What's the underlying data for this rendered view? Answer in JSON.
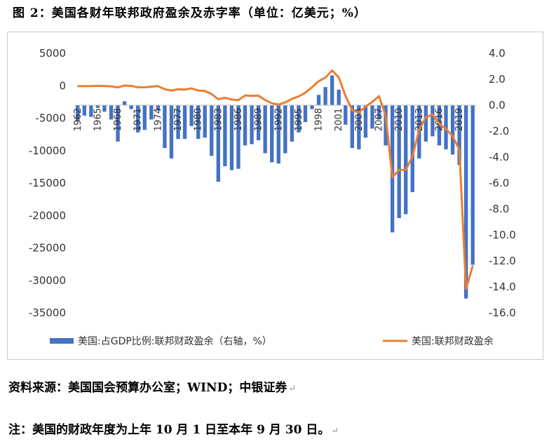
{
  "title": "图 2：美国各财年联邦政府盈余及赤字率（单位：亿美元；%）",
  "source": "资料来源：美国国会预算办公室；WIND；中银证券",
  "footnote": "注：美国的财政年度为上年 10 月 1 日至本年 9 月 30 日。",
  "colors": {
    "bar": "#4472c4",
    "line": "#ed7d31",
    "grid": "#d9d9d9"
  },
  "chart_data": {
    "type": "bar+line",
    "x": [
      1962,
      1963,
      1964,
      1965,
      1966,
      1967,
      1968,
      1969,
      1970,
      1971,
      1972,
      1973,
      1974,
      1975,
      1976,
      1977,
      1978,
      1979,
      1980,
      1981,
      1982,
      1983,
      1984,
      1985,
      1986,
      1987,
      1988,
      1989,
      1990,
      1991,
      1992,
      1993,
      1994,
      1995,
      1996,
      1997,
      1998,
      1999,
      2000,
      2001,
      2002,
      2003,
      2004,
      2005,
      2006,
      2007,
      2008,
      2009,
      2010,
      2011,
      2012,
      2013,
      2014,
      2015,
      2016,
      2017,
      2018,
      2019,
      2020,
      2021
    ],
    "x_tick_labels": [
      "1962",
      "1965",
      "1968",
      "1971",
      "1974",
      "1977",
      "1980",
      "1983",
      "1986",
      "1989",
      "1992",
      "1995",
      "1998",
      "2001",
      "2004",
      "2007",
      "2010",
      "2013",
      "2016",
      "2019"
    ],
    "left_axis": {
      "ticks": [
        "5000",
        "0",
        "-5000",
        "-10000",
        "-15000",
        "-20000",
        "-25000",
        "-30000",
        "-35000"
      ],
      "ylim": [
        -35000,
        5000
      ]
    },
    "right_axis": {
      "ticks": [
        "4.0",
        "2.0",
        "0.0",
        "-2.0",
        "-4.0",
        "-6.0",
        "-8.0",
        "-10.0",
        "-12.0",
        "-14.0",
        "-16.0"
      ],
      "ylim": [
        -16,
        4
      ]
    },
    "series": [
      {
        "name": "美国:占GDP比例:联邦财政盈余（右轴，%）",
        "type": "bar",
        "axis": "right",
        "values": [
          -1.2,
          -0.8,
          -0.9,
          -0.2,
          -0.5,
          -1.1,
          -2.8,
          0.3,
          -0.3,
          -2.1,
          -1.9,
          -1.1,
          -0.4,
          -3.3,
          -4.1,
          -2.6,
          -2.6,
          -1.6,
          -2.6,
          -2.5,
          -3.9,
          -5.9,
          -4.7,
          -5.0,
          -4.9,
          -3.1,
          -3.0,
          -2.7,
          -3.7,
          -4.4,
          -4.5,
          -3.7,
          -2.8,
          -2.1,
          -1.3,
          -0.3,
          0.8,
          1.4,
          2.3,
          1.2,
          -1.5,
          -3.3,
          -3.4,
          -2.5,
          -1.8,
          -1.1,
          -3.1,
          -9.8,
          -8.7,
          -8.4,
          -6.7,
          -4.1,
          -2.8,
          -2.4,
          -3.1,
          -3.4,
          -3.8,
          -4.6,
          -14.9,
          -12.3
        ]
      },
      {
        "name": "美国:联邦财政盈余",
        "type": "line",
        "axis": "left",
        "values": [
          -71,
          -48,
          -59,
          -14,
          -37,
          -87,
          -252,
          32,
          -28,
          -230,
          -234,
          -149,
          -61,
          -532,
          -737,
          -537,
          -590,
          -407,
          -738,
          -790,
          -1280,
          -2078,
          -1854,
          -2123,
          -2212,
          -1497,
          -1552,
          -1525,
          -2212,
          -2694,
          -2902,
          -2552,
          -2031,
          -1640,
          -1072,
          -219,
          693,
          1256,
          2362,
          1282,
          -1578,
          -3778,
          -4128,
          -3183,
          -2482,
          -1606,
          -4586,
          -14127,
          -12944,
          -12999,
          -10870,
          -6796,
          -4847,
          -4424,
          -5852,
          -6651,
          -7790,
          -9838,
          -31319,
          -27746
        ]
      }
    ],
    "legend": {
      "placement": "bottom"
    }
  }
}
